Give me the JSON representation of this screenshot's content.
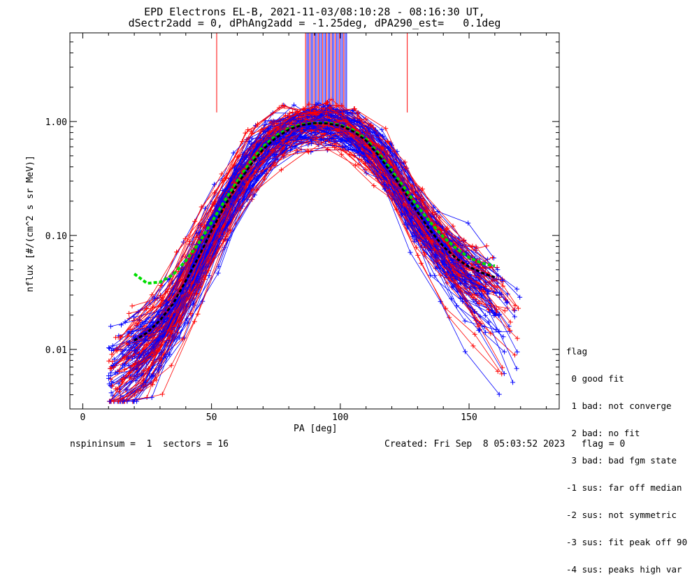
{
  "title_line1": "EPD Electrons EL-B, 2021-11-03/08:10:28 - 08:16:30 UT,",
  "title_line2": "dSectr2add = 0, dPhAng2add = -1.25deg, dPA290_est=   0.1deg",
  "footer_left": "nspininsum =  1  sectors = 16",
  "footer_right": "Created: Fri Sep  8 05:03:52 2023   flag = 0",
  "legend": {
    "title": "flag",
    "items": [
      " 0 good fit",
      " 1 bad: not converge",
      " 2 bad: no fit",
      " 3 bad: bad fgm state",
      "-1 sus: far off median",
      "-2 sus: not symmetric",
      "-3 sus: fit peak off 90",
      "-4 sus: peaks high var"
    ]
  },
  "colors": {
    "red": "#ff0000",
    "blue": "#0000ff",
    "green": "#00dd00",
    "black": "#000000"
  },
  "chart_data": {
    "type": "line",
    "xlabel": "PA [deg]",
    "ylabel": "nflux [#/(cm^2 s sr MeV)]",
    "xlim": [
      -5,
      185
    ],
    "ylim": [
      0.003,
      6.0
    ],
    "yscale": "log",
    "xticks": [
      0,
      50,
      100,
      150
    ],
    "xtick_labels": [
      "0",
      "50",
      "100",
      "150"
    ],
    "yticks": [
      0.01,
      0.1,
      1.0
    ],
    "ytick_labels": [
      "0.01",
      "0.10",
      "1.00"
    ],
    "series": [
      {
        "color": "green",
        "style": "dashed-thick",
        "x": [
          20,
          25,
          30,
          35,
          40,
          45,
          50,
          55,
          60,
          65,
          70,
          75,
          80,
          85,
          90,
          95,
          100,
          105,
          110,
          115,
          120,
          125,
          130,
          135,
          140,
          145,
          150,
          155,
          160
        ],
        "y": [
          0.046,
          0.038,
          0.039,
          0.045,
          0.06,
          0.085,
          0.13,
          0.2,
          0.3,
          0.44,
          0.6,
          0.75,
          0.87,
          0.94,
          0.97,
          0.97,
          0.93,
          0.84,
          0.7,
          0.52,
          0.37,
          0.26,
          0.18,
          0.13,
          0.097,
          0.077,
          0.064,
          0.057,
          0.054
        ]
      },
      {
        "color": "black",
        "style": "dashed-thick",
        "x": [
          20,
          25,
          30,
          35,
          40,
          45,
          50,
          55,
          60,
          65,
          70,
          75,
          80,
          85,
          90,
          95,
          100,
          105,
          110,
          115,
          120,
          125,
          130,
          135,
          140,
          145,
          150,
          155,
          160
        ],
        "y": [
          0.012,
          0.014,
          0.018,
          0.025,
          0.04,
          0.065,
          0.11,
          0.18,
          0.28,
          0.41,
          0.57,
          0.72,
          0.85,
          0.93,
          0.97,
          0.96,
          0.92,
          0.82,
          0.68,
          0.5,
          0.35,
          0.24,
          0.16,
          0.11,
          0.08,
          0.063,
          0.053,
          0.047,
          0.043
        ]
      }
    ]
  }
}
